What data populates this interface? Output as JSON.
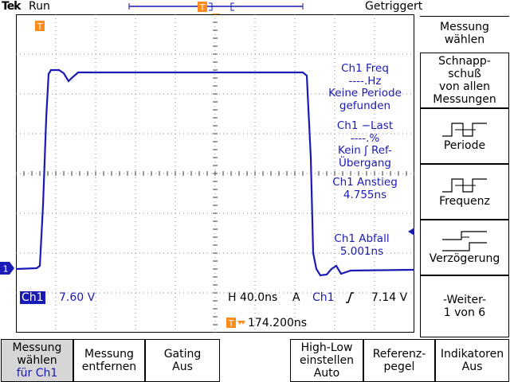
{
  "top": {
    "brand": "Tek",
    "state": "Run",
    "trigger_status": "Getriggert"
  },
  "scope": {
    "trigger_marker": "T",
    "ch1_marker": "1",
    "trace_color": "#1a1ab4"
  },
  "readouts": [
    {
      "title": "Ch1 Freq",
      "value": "----.Hz",
      "note1": "Keine Periode",
      "note2": "gefunden"
    },
    {
      "title": "Ch1 −Last",
      "value": "----.%",
      "note1": "Kein ʃ Ref-",
      "note2": "Übergang"
    },
    {
      "title": "Ch1 Anstieg",
      "value": "4.755ns"
    },
    {
      "title": "Ch1 Abfall",
      "value": "5.001ns"
    }
  ],
  "status": {
    "channel": "Ch1",
    "volts_div": "7.60 V",
    "time_div": "H 40.0ns",
    "trig_mode": "A",
    "trig_src": "Ch1",
    "trig_level": "7.14 V",
    "trig_pos": "174.200ns"
  },
  "right_menu": {
    "header": [
      "Messung",
      "wählen"
    ],
    "items": [
      {
        "lines": [
          "Schnapp-",
          "schuß",
          "von allen",
          "Messungen"
        ]
      },
      {
        "label": "Periode",
        "icon": "period-icon"
      },
      {
        "label": "Frequenz",
        "icon": "frequency-icon"
      },
      {
        "label": "Verzögerung",
        "icon": "delay-icon"
      },
      {
        "lines": [
          "-Weiter-",
          "1 von 6"
        ]
      }
    ]
  },
  "bottom_menu": [
    {
      "lines": [
        "Messung",
        "wählen"
      ],
      "sub": "für Ch1",
      "selected": true
    },
    {
      "lines": [
        "Messung",
        "entfernen"
      ]
    },
    {
      "lines": [
        "Gating",
        "Aus"
      ]
    },
    {
      "lines": [
        "High-Low",
        "einstellen",
        "Auto"
      ]
    },
    {
      "lines": [
        "Referenz-",
        "pegel"
      ]
    },
    {
      "lines": [
        "Indikatoren",
        "Aus"
      ]
    }
  ]
}
